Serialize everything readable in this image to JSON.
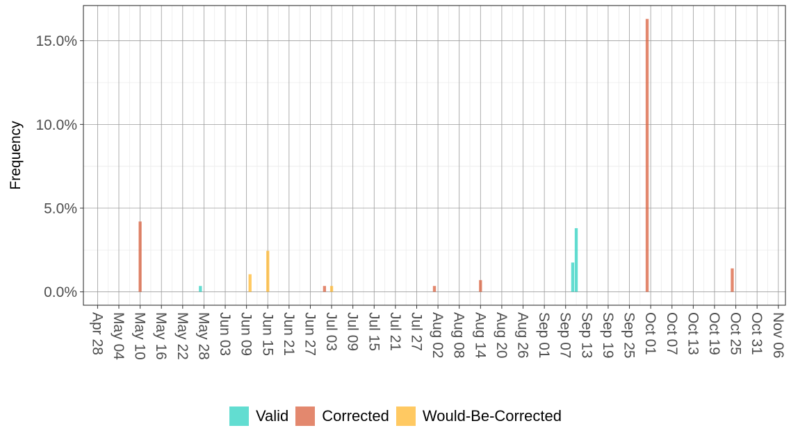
{
  "chart_data": {
    "type": "bar",
    "title": "",
    "xlabel": "",
    "ylabel": "Frequency",
    "y_tick_labels": [
      "0.0%",
      "5.0%",
      "10.0%",
      "15.0%"
    ],
    "y_ticks": [
      0,
      5,
      10,
      15
    ],
    "ylim": [
      -0.8,
      17.1
    ],
    "x_tick_labels": [
      "Apr 28",
      "May 04",
      "May 10",
      "May 16",
      "May 22",
      "May 28",
      "Jun 03",
      "Jun 09",
      "Jun 15",
      "Jun 21",
      "Jun 27",
      "Jul 03",
      "Jul 09",
      "Jul 15",
      "Jul 21",
      "Jul 27",
      "Aug 02",
      "Aug 08",
      "Aug 14",
      "Aug 20",
      "Aug 26",
      "Sep 01",
      "Sep 07",
      "Sep 13",
      "Sep 19",
      "Sep 25",
      "Oct 01",
      "Oct 07",
      "Oct 13",
      "Oct 19",
      "Oct 25",
      "Oct 31",
      "Nov 06"
    ],
    "xlim": [
      "2023-04-24",
      "2023-11-08"
    ],
    "grid": true,
    "legend_position": "bottom",
    "series": [
      {
        "name": "Valid",
        "color": "#2ed1c1",
        "points": [
          {
            "x": "2023-05-27",
            "y": 0.35
          },
          {
            "x": "2023-09-09",
            "y": 1.75
          },
          {
            "x": "2023-09-10",
            "y": 3.8
          }
        ]
      },
      {
        "name": "Corrected",
        "color": "#d9603e",
        "points": [
          {
            "x": "2023-05-10",
            "y": 4.2
          },
          {
            "x": "2023-07-01",
            "y": 0.35
          },
          {
            "x": "2023-08-01",
            "y": 0.35
          },
          {
            "x": "2023-08-14",
            "y": 0.7
          },
          {
            "x": "2023-09-30",
            "y": 16.3
          },
          {
            "x": "2023-10-24",
            "y": 1.4
          }
        ]
      },
      {
        "name": "Would-Be-Corrected",
        "color": "#ffb72e",
        "points": [
          {
            "x": "2023-06-10",
            "y": 1.05
          },
          {
            "x": "2023-06-15",
            "y": 2.45
          },
          {
            "x": "2023-07-03",
            "y": 0.35
          }
        ]
      }
    ]
  }
}
